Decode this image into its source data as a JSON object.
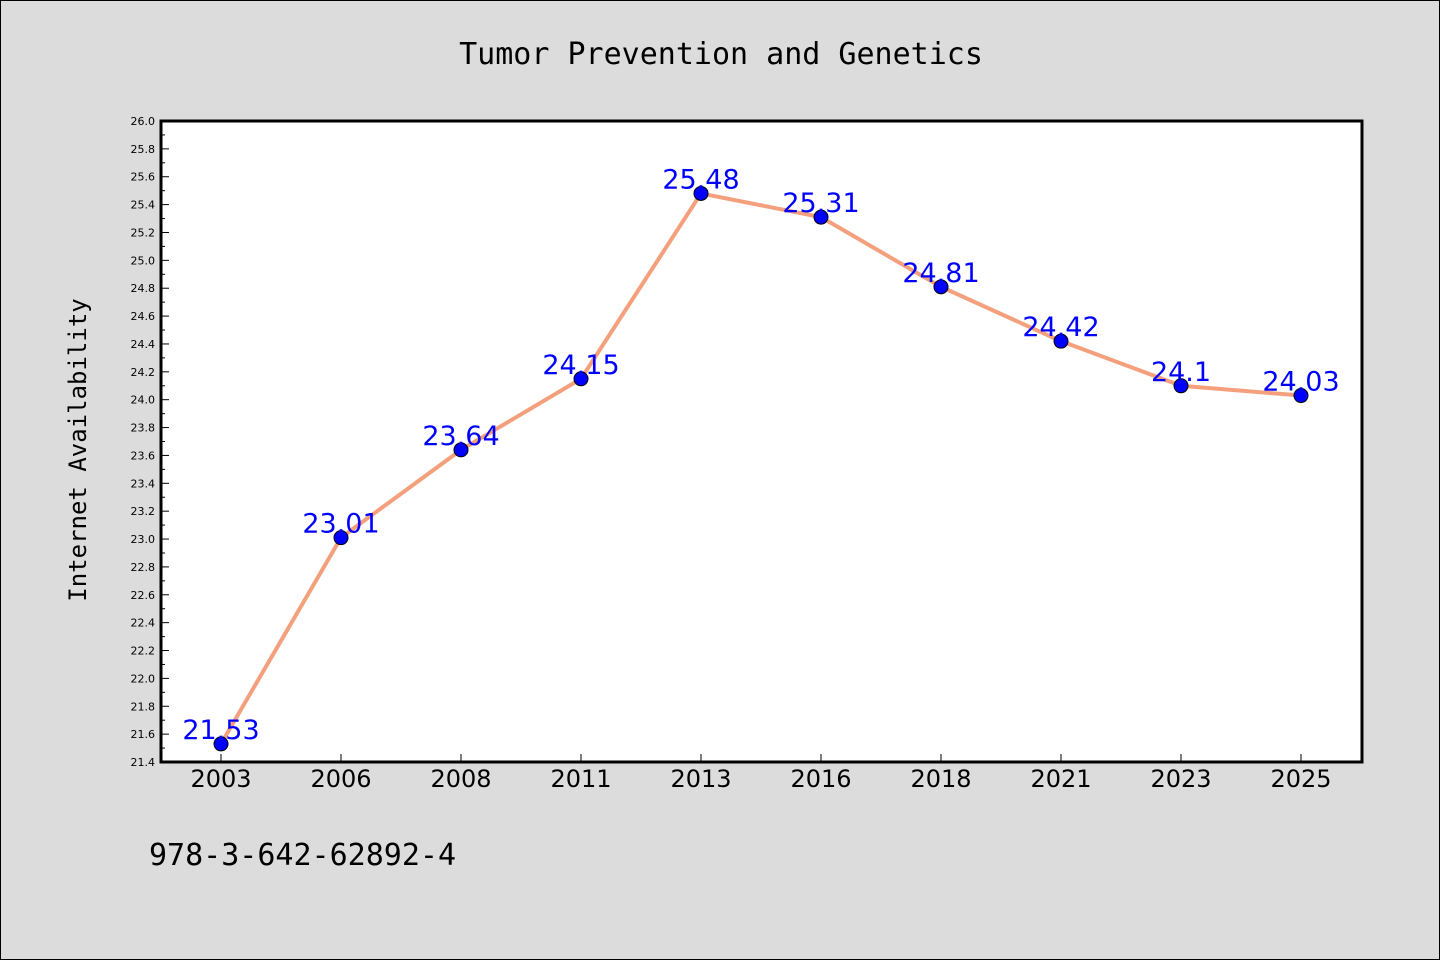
{
  "chart_data": {
    "type": "line",
    "title": "Tumor Prevention and Genetics",
    "xlabel": "",
    "ylabel": "Internet Availability",
    "categories": [
      "2003",
      "2006",
      "2008",
      "2011",
      "2013",
      "2016",
      "2018",
      "2021",
      "2023",
      "2025"
    ],
    "values": [
      21.53,
      23.01,
      23.64,
      24.15,
      25.48,
      25.31,
      24.81,
      24.42,
      24.1,
      24.03
    ],
    "data_labels": [
      "21.53",
      "23.01",
      "23.64",
      "24.15",
      "25.48",
      "25.31",
      "24.81",
      "24.42",
      "24.1",
      "24.03"
    ],
    "ylim": [
      21.4,
      26.0
    ],
    "y_ticks": [
      "21.4",
      "21.6",
      "21.8",
      "22.0",
      "22.2",
      "22.4",
      "22.6",
      "22.8",
      "23.0",
      "23.2",
      "23.4",
      "23.6",
      "23.8",
      "24.0",
      "24.2",
      "24.4",
      "24.6",
      "24.8",
      "25.0",
      "25.2",
      "25.4",
      "25.6",
      "25.8",
      "26.0"
    ],
    "grid": false,
    "line_color": "#f4a07c",
    "marker_color": "#0000ff",
    "label_color": "#0000ff",
    "footnote": "978-3-642-62892-4"
  }
}
